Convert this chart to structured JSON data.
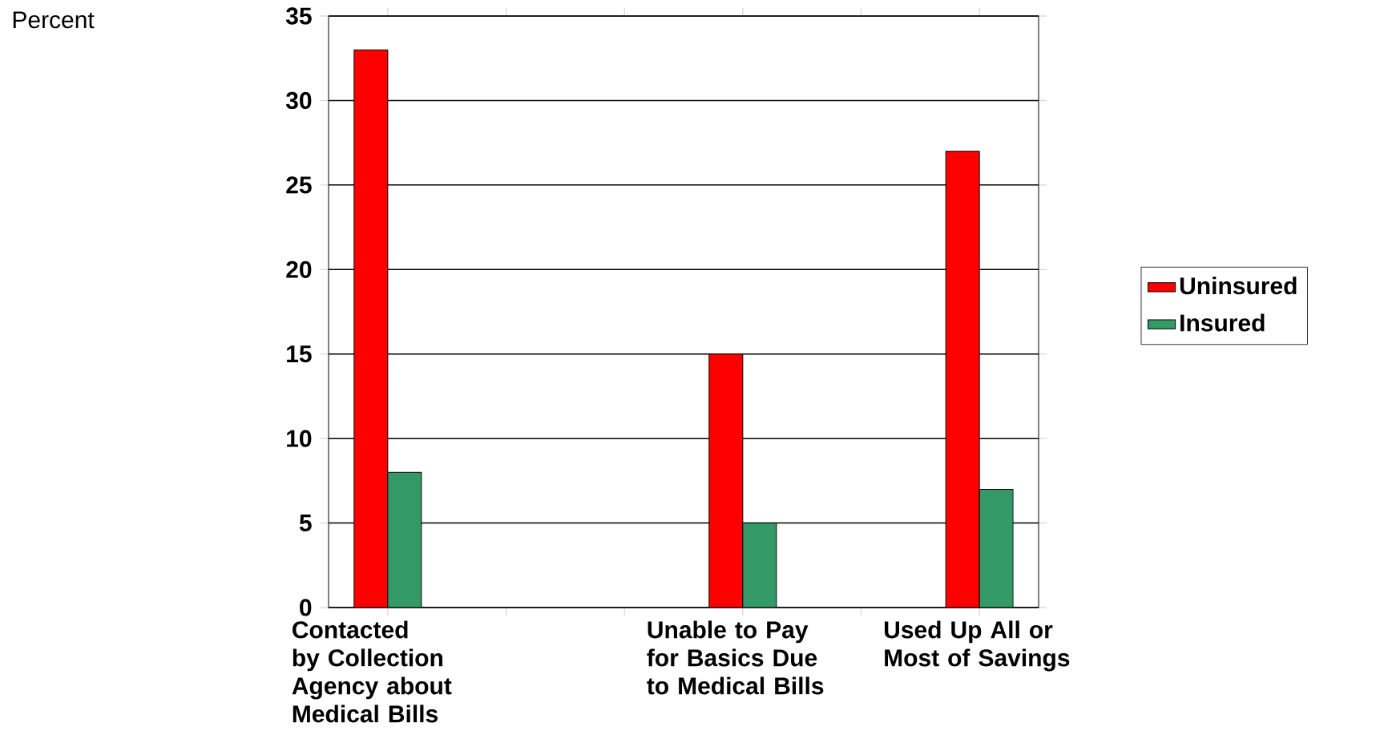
{
  "chart_data": {
    "type": "bar",
    "annotations": [
      "Percent"
    ],
    "categories": [
      "Contacted by Collection Agency about Medical Bills",
      null,
      null,
      "Unable to Pay for Basics Due to Medical Bills",
      null,
      "Used Up All or Most of Savings"
    ],
    "series": [
      {
        "name": "Uninsured",
        "color": "#ff0000",
        "values": [
          33,
          null,
          null,
          15,
          null,
          27
        ]
      },
      {
        "name": "Insured",
        "color": "#339966",
        "values": [
          8,
          null,
          null,
          5,
          null,
          7
        ]
      }
    ],
    "ylim": [
      0,
      35
    ],
    "yticks": [
      0,
      5,
      10,
      15,
      20,
      25,
      30,
      35
    ],
    "grid": "y",
    "legend": "right"
  }
}
